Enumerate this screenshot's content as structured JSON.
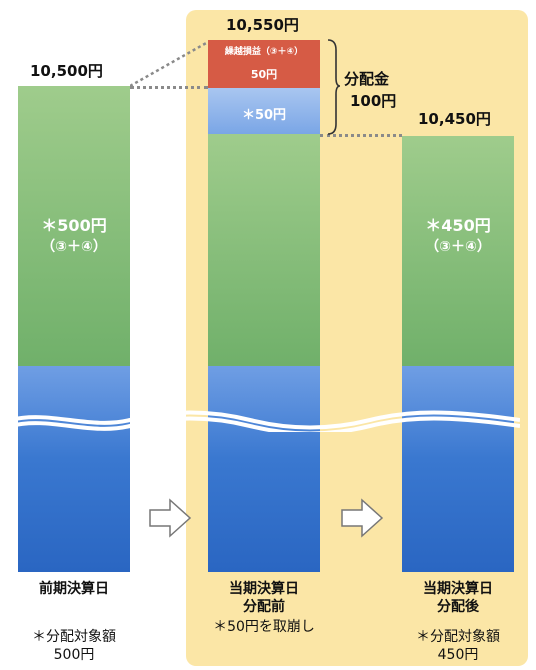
{
  "columns": [
    {
      "total": "10,500円",
      "inner_main": "＊500円",
      "inner_sub": "（③＋④）",
      "caption_lines": [
        "前期決算日"
      ],
      "note_lines": [
        "＊分配対象額",
        "500円"
      ]
    },
    {
      "total": "10,550円",
      "red_top": "繰越損益（③＋④）",
      "red_bottom": "50円",
      "lightblue_text": "＊50円",
      "caption_lines": [
        "当期決算日",
        "分配前"
      ],
      "note_lines": [
        "＊50円を取崩し"
      ]
    },
    {
      "total": "10,450円",
      "inner_main": "＊450円",
      "inner_sub": "（③＋④）",
      "caption_lines": [
        "当期決算日",
        "分配後"
      ],
      "note_lines": [
        "＊分配対象額",
        "450円"
      ]
    }
  ],
  "distribution": {
    "label": "分配金",
    "amount": "100円"
  },
  "colors": {
    "panel": "#fbe6a6",
    "green": "#70b06a",
    "blue": "#3a78d0",
    "light_blue": "#7aa6e6",
    "red": "#d65b45"
  }
}
